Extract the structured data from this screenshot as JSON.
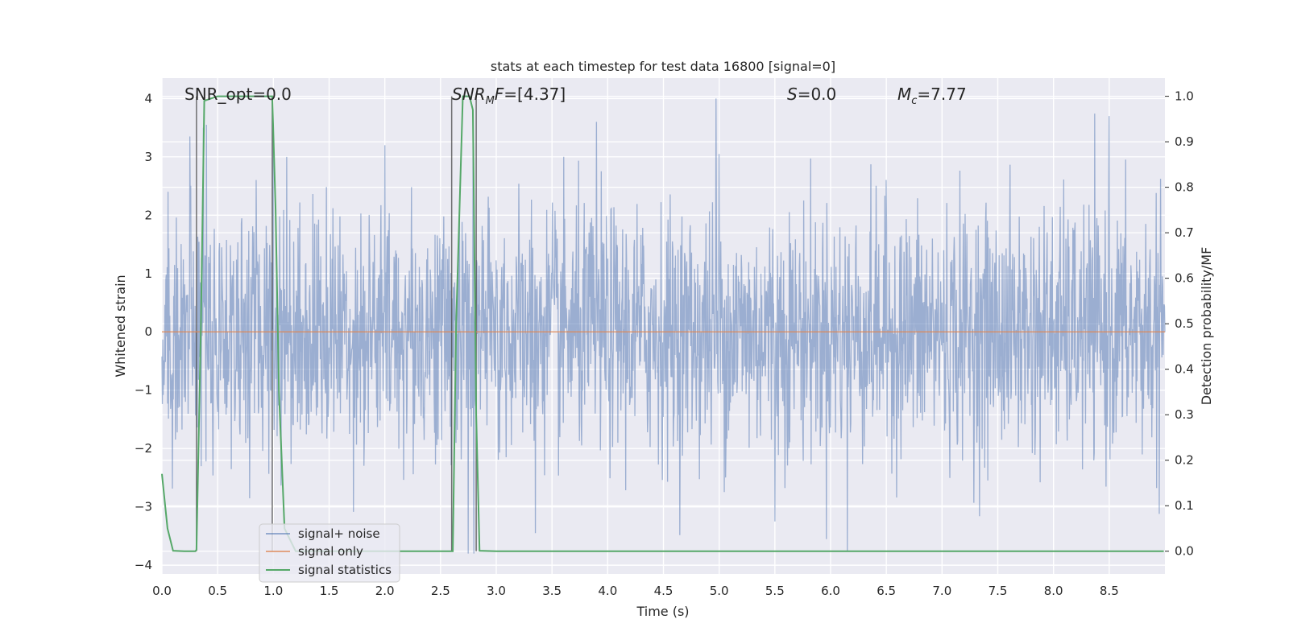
{
  "chart_data": {
    "type": "line",
    "title": "stats at each timestep for test data 16800 [signal=0]",
    "xlabel": "Time (s)",
    "ylabel": "Whitened strain",
    "y2label": "Detection probability/MF",
    "xlim": [
      0,
      9
    ],
    "ylim": [
      -4.15,
      4.35
    ],
    "y2lim": [
      -0.05,
      1.04
    ],
    "xticks": [
      0.0,
      0.5,
      1.0,
      1.5,
      2.0,
      2.5,
      3.0,
      3.5,
      4.0,
      4.5,
      5.0,
      5.5,
      6.0,
      6.5,
      7.0,
      7.5,
      8.0,
      8.5
    ],
    "yticks": [
      4,
      3,
      2,
      1,
      0,
      -1,
      -2,
      -3,
      -4
    ],
    "y2ticks": [
      1.0,
      0.9,
      0.8,
      0.7,
      0.6,
      0.5,
      0.4,
      0.3,
      0.2,
      0.1,
      0.0
    ],
    "grid": true,
    "legend_position": "lower-left",
    "annotations": [
      {
        "text": "SNR_opt=0.0",
        "x": 0.2,
        "y": 4.05
      },
      {
        "text": "SNR_MF=[4.37]",
        "x": 2.6,
        "y": 4.05
      },
      {
        "text": "S=0.0",
        "x": 5.6,
        "y": 4.05
      },
      {
        "text": "M_c=7.77",
        "x": 6.6,
        "y": 4.05
      }
    ],
    "vertical_lines": [
      0.31,
      0.99,
      2.6,
      2.82
    ],
    "series": [
      {
        "name": "signal+ noise",
        "color": "#4c72b0",
        "description": "whitened noise, std about 1, peaks between -3.8 and 4.0",
        "envelope": {
          "max_abs": 4.0,
          "peaks": [
            [
              0.25,
              3.35
            ],
            [
              0.37,
              3.5
            ],
            [
              0.4,
              3.55
            ],
            [
              1.0,
              3.3
            ],
            [
              1.12,
              3.0
            ],
            [
              2.0,
              3.2
            ],
            [
              3.9,
              3.6
            ],
            [
              4.97,
              4.0
            ],
            [
              5.0,
              3.05
            ],
            [
              8.5,
              3.7
            ],
            [
              2.75,
              -3.8
            ],
            [
              2.8,
              -3.8
            ],
            [
              3.35,
              -3.45
            ],
            [
              6.15,
              -3.75
            ],
            [
              5.5,
              -3.25
            ]
          ]
        }
      },
      {
        "name": "signal only",
        "color": "#dd8452",
        "x": [
          0,
          9
        ],
        "y": [
          0,
          0
        ]
      },
      {
        "name": "signal statistics",
        "color": "#55a868",
        "axis": "right",
        "x": [
          0.0,
          0.05,
          0.1,
          0.2,
          0.3,
          0.31,
          0.35,
          0.38,
          0.5,
          0.6,
          0.8,
          0.99,
          1.02,
          1.05,
          1.1,
          1.2,
          1.5,
          2.0,
          2.5,
          2.61,
          2.64,
          2.7,
          2.76,
          2.79,
          2.82,
          2.85,
          3.0,
          4.0,
          5.0,
          6.0,
          7.0,
          8.0,
          8.99
        ],
        "y": [
          0.17,
          0.05,
          0.001,
          0.0,
          0.0,
          0.003,
          0.5,
          0.99,
          1.0,
          1.0,
          1.0,
          1.0,
          0.75,
          0.35,
          0.05,
          0.0,
          0.0,
          0.0,
          0.0,
          0.0,
          0.5,
          1.0,
          1.0,
          0.97,
          0.3,
          0.001,
          0.0,
          0.0,
          0.0,
          0.0,
          0.0,
          0.0,
          0.0
        ]
      }
    ]
  }
}
